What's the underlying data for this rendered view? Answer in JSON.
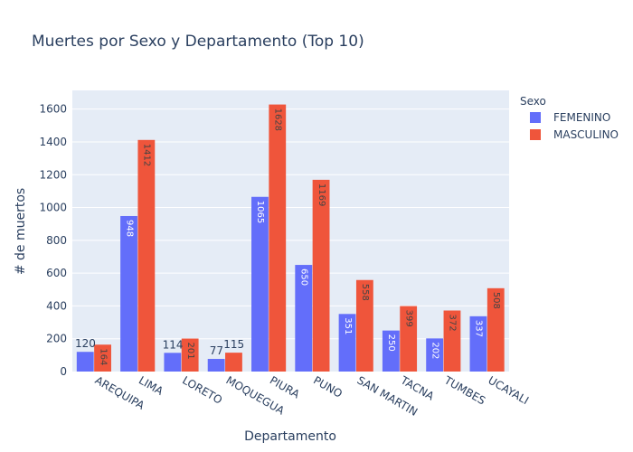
{
  "chart_data": {
    "type": "bar",
    "title": "Muertes por Sexo y Departamento (Top 10)",
    "xlabel": "Departamento",
    "ylabel": "# de muertos",
    "categories": [
      "AREQUIPA",
      "LIMA",
      "LORETO",
      "MOQUEGUA",
      "PIURA",
      "PUNO",
      "SAN MARTIN",
      "TACNA",
      "TUMBES",
      "UCAYALI"
    ],
    "series": [
      {
        "name": "FEMENINO",
        "color": "#636efa",
        "values": [
          120,
          948,
          114,
          77,
          1065,
          650,
          351,
          250,
          202,
          337
        ]
      },
      {
        "name": "MASCULINO",
        "color": "#ef553b",
        "values": [
          164,
          1412,
          201,
          115,
          1628,
          1169,
          558,
          399,
          372,
          508
        ]
      }
    ],
    "ylim": [
      0,
      1714
    ],
    "yticks": [
      0,
      200,
      400,
      600,
      800,
      1000,
      1200,
      1400,
      1600
    ],
    "legend_title": "Sexo",
    "legend_position": "right",
    "grid": true,
    "plot_background": "#e5ecf6"
  }
}
